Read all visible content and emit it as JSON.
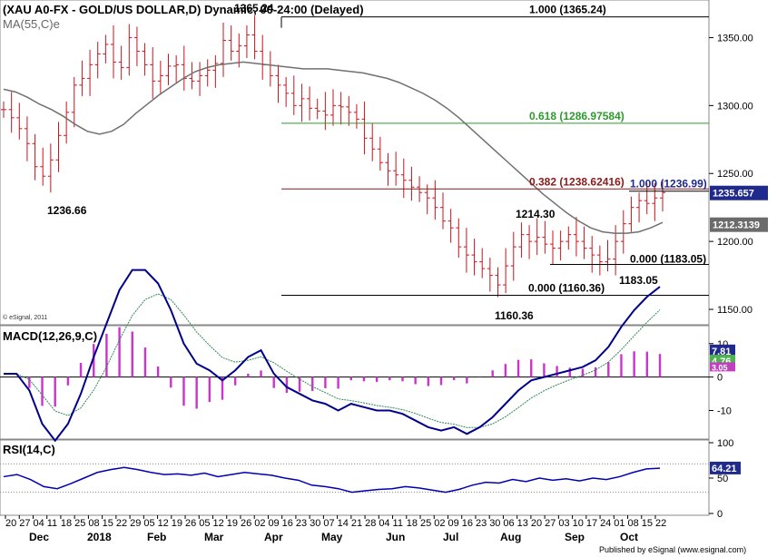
{
  "header": {
    "title": "(XAU A0-FX - GOLD/US DOLLAR,D) Dynamic, 00-24:00 (Delayed)",
    "overlay_value": "1365.24",
    "ma_label": "MA(55,C)e",
    "copyright": "© eSignal, 2011"
  },
  "footer": {
    "published": "Published by eSignal (www.esignal.com)"
  },
  "colors": {
    "price_bars": "#c8141e",
    "ma": "#707070",
    "fib_green": "#2e9a2e",
    "fib_red": "#8b1a1a",
    "fib_black": "#000000",
    "macd": "#00008b",
    "signal": "#2e8b57",
    "histogram": "#cc33cc",
    "rsi": "#0000b4",
    "badge_blue": "#1f2a8c",
    "badge_grey": "#6b6b6b",
    "badge_green": "#4db34d",
    "badge_magenta": "#c040c0"
  },
  "chart_data": [
    {
      "type": "candlestick",
      "panel": "price",
      "title": "(XAU A0-FX - GOLD/US DOLLAR,D) Dynamic, 00-24:00 (Delayed)",
      "ylim": [
        1140,
        1375
      ],
      "y_ticks": [
        "1350.00",
        "1300.00",
        "1250.00",
        "1200.00",
        "1150.00"
      ],
      "x_date_labels": [
        "20",
        "27",
        "04",
        "11",
        "18",
        "25",
        "08",
        "15",
        "22",
        "29",
        "05",
        "12",
        "19",
        "26",
        "05",
        "12",
        "19",
        "26",
        "02",
        "09",
        "16",
        "23",
        "30",
        "07",
        "14",
        "21",
        "28",
        "04",
        "11",
        "18",
        "25",
        "02",
        "09",
        "16",
        "23",
        "30",
        "06",
        "13",
        "20",
        "27",
        "03",
        "10",
        "17",
        "24",
        "01",
        "08",
        "15",
        "22"
      ],
      "x_month_labels": [
        "Dec",
        "2018",
        "Feb",
        "Mar",
        "Apr",
        "May",
        "Jun",
        "Jul",
        "Aug",
        "Sep",
        "Oct"
      ],
      "series": [
        {
          "name": "MA(55,C)e",
          "values": [
            1312,
            1310,
            1306,
            1301,
            1297,
            1292,
            1286,
            1281,
            1279,
            1281,
            1286,
            1294,
            1301,
            1308,
            1314,
            1320,
            1325,
            1328,
            1330,
            1331,
            1332,
            1331,
            1330,
            1329,
            1328,
            1327,
            1327,
            1327,
            1326,
            1325,
            1324,
            1322,
            1320,
            1317,
            1313,
            1309,
            1304,
            1298,
            1291,
            1283,
            1275,
            1267,
            1259,
            1251,
            1243,
            1235,
            1228,
            1221,
            1215,
            1210,
            1207,
            1206,
            1206,
            1207,
            1210,
            1214
          ]
        },
        {
          "name": "MACD(12,26,9,C)",
          "values": [
            1,
            1,
            -4,
            -14,
            -19,
            -14,
            -5,
            6,
            16,
            26,
            32,
            32,
            28,
            20,
            10,
            4,
            2,
            -1,
            2,
            6,
            8,
            1,
            -3,
            -5,
            -7,
            -8,
            -10,
            -8,
            -9,
            -10,
            -10,
            -11,
            -13,
            -15,
            -16,
            -15,
            -17,
            -15,
            -12,
            -8,
            -4,
            -1,
            0,
            1,
            2,
            3,
            5,
            9,
            15,
            20,
            24,
            27
          ]
        },
        {
          "name": "RSI(14,C)",
          "values": [
            52,
            55,
            48,
            38,
            35,
            42,
            50,
            58,
            62,
            65,
            62,
            58,
            55,
            56,
            54,
            57,
            52,
            55,
            58,
            56,
            54,
            50,
            47,
            40,
            38,
            35,
            30,
            32,
            34,
            35,
            38,
            36,
            33,
            30,
            34,
            40,
            44,
            43,
            48,
            45,
            50,
            47,
            49,
            46,
            50,
            48,
            52,
            58,
            63,
            64
          ]
        }
      ],
      "ohlc_note": "daily OHLC bars, estimated from gridlines",
      "price_closes": [
        1297,
        1291,
        1283,
        1272,
        1255,
        1248,
        1260,
        1278,
        1295,
        1315,
        1320,
        1330,
        1338,
        1345,
        1332,
        1328,
        1350,
        1340,
        1330,
        1318,
        1322,
        1329,
        1330,
        1320,
        1318,
        1322,
        1326,
        1331,
        1348,
        1340,
        1344,
        1352,
        1340,
        1330,
        1322,
        1315,
        1309,
        1300,
        1305,
        1298,
        1296,
        1293,
        1300,
        1299,
        1295,
        1290,
        1276,
        1268,
        1258,
        1252,
        1249,
        1245,
        1240,
        1236,
        1232,
        1225,
        1215,
        1210,
        1196,
        1190,
        1185,
        1180,
        1175,
        1168,
        1182,
        1196,
        1205,
        1200,
        1203,
        1198,
        1195,
        1200,
        1205,
        1200,
        1195,
        1190,
        1185,
        1187,
        1200,
        1213,
        1225,
        1230,
        1228,
        1232,
        1236
      ],
      "fib_levels": [
        {
          "label": "1.000 (1365.24)",
          "value": 1365.24
        },
        {
          "label": "0.618 (1286.97584)",
          "value": 1286.97584
        },
        {
          "label": "0.382 (1238.62416)",
          "value": 1238.62416
        },
        {
          "label": "0.000 (1160.36)",
          "value": 1160.36
        }
      ],
      "fib_levels_2": [
        {
          "label": "1.000 (1236.99)",
          "value": 1236.99
        },
        {
          "label": "0.000 (1183.05)",
          "value": 1183.05
        }
      ],
      "annotations": [
        "1236.66",
        "1214.30",
        "1183.05",
        "1160.36"
      ],
      "value_badges": [
        "1235.657",
        "1212.3139"
      ]
    },
    {
      "type": "line",
      "panel": "macd",
      "title": "MACD(12,26,9,C)",
      "ylim": [
        -18,
        14
      ],
      "y_ticks": [
        "10",
        "0",
        "-10"
      ],
      "series_names": [
        "MACD",
        "Signal",
        "Histogram"
      ],
      "value_badges": [
        "7.81",
        "4.76"
      ],
      "value_badges_3": [
        "3.05"
      ]
    },
    {
      "type": "line",
      "panel": "rsi",
      "title": "RSI(14,C)",
      "ylim": [
        0,
        100
      ],
      "y_ticks": [
        "100",
        "50",
        "0"
      ],
      "reference_lines": [
        70,
        30
      ],
      "value_badges": [
        "64.21"
      ]
    }
  ]
}
